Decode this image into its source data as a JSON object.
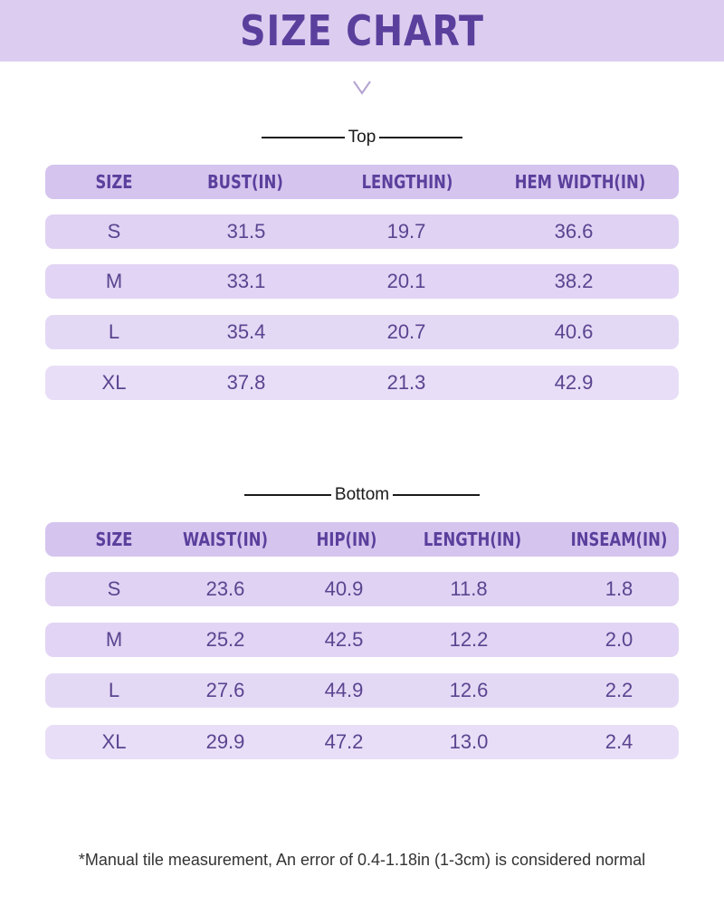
{
  "title": "SIZE CHART",
  "top": {
    "label": "Top",
    "headers": [
      "SIZE",
      "BUST(IN)",
      "LENGTHIN)",
      "HEM WIDTH(IN)"
    ],
    "rows": [
      [
        "S",
        "31.5",
        "19.7",
        "36.6"
      ],
      [
        "M",
        "33.1",
        "20.1",
        "38.2"
      ],
      [
        "L",
        "35.4",
        "20.7",
        "40.6"
      ],
      [
        "XL",
        "37.8",
        "21.3",
        "42.9"
      ]
    ]
  },
  "bottom": {
    "label": "Bottom",
    "headers": [
      "SIZE",
      "WAIST(IN)",
      "HIP(IN)",
      "LENGTH(IN)",
      "INSEAM(IN)"
    ],
    "rows": [
      [
        "S",
        "23.6",
        "40.9",
        "11.8",
        "1.8"
      ],
      [
        "M",
        "25.2",
        "42.5",
        "12.2",
        "2.0"
      ],
      [
        "L",
        "27.6",
        "44.9",
        "12.6",
        "2.2"
      ],
      [
        "XL",
        "29.9",
        "47.2",
        "13.0",
        "2.4"
      ]
    ]
  },
  "footnote": "*Manual tile measurement, An error of 0.4-1.18in (1-3cm) is considered normal",
  "colors": {
    "header_band": "#dccdf0",
    "title_text": "#5b3f9c",
    "table_text": "#5a4490"
  },
  "icons": {
    "chevron": "chevron-down-icon"
  }
}
